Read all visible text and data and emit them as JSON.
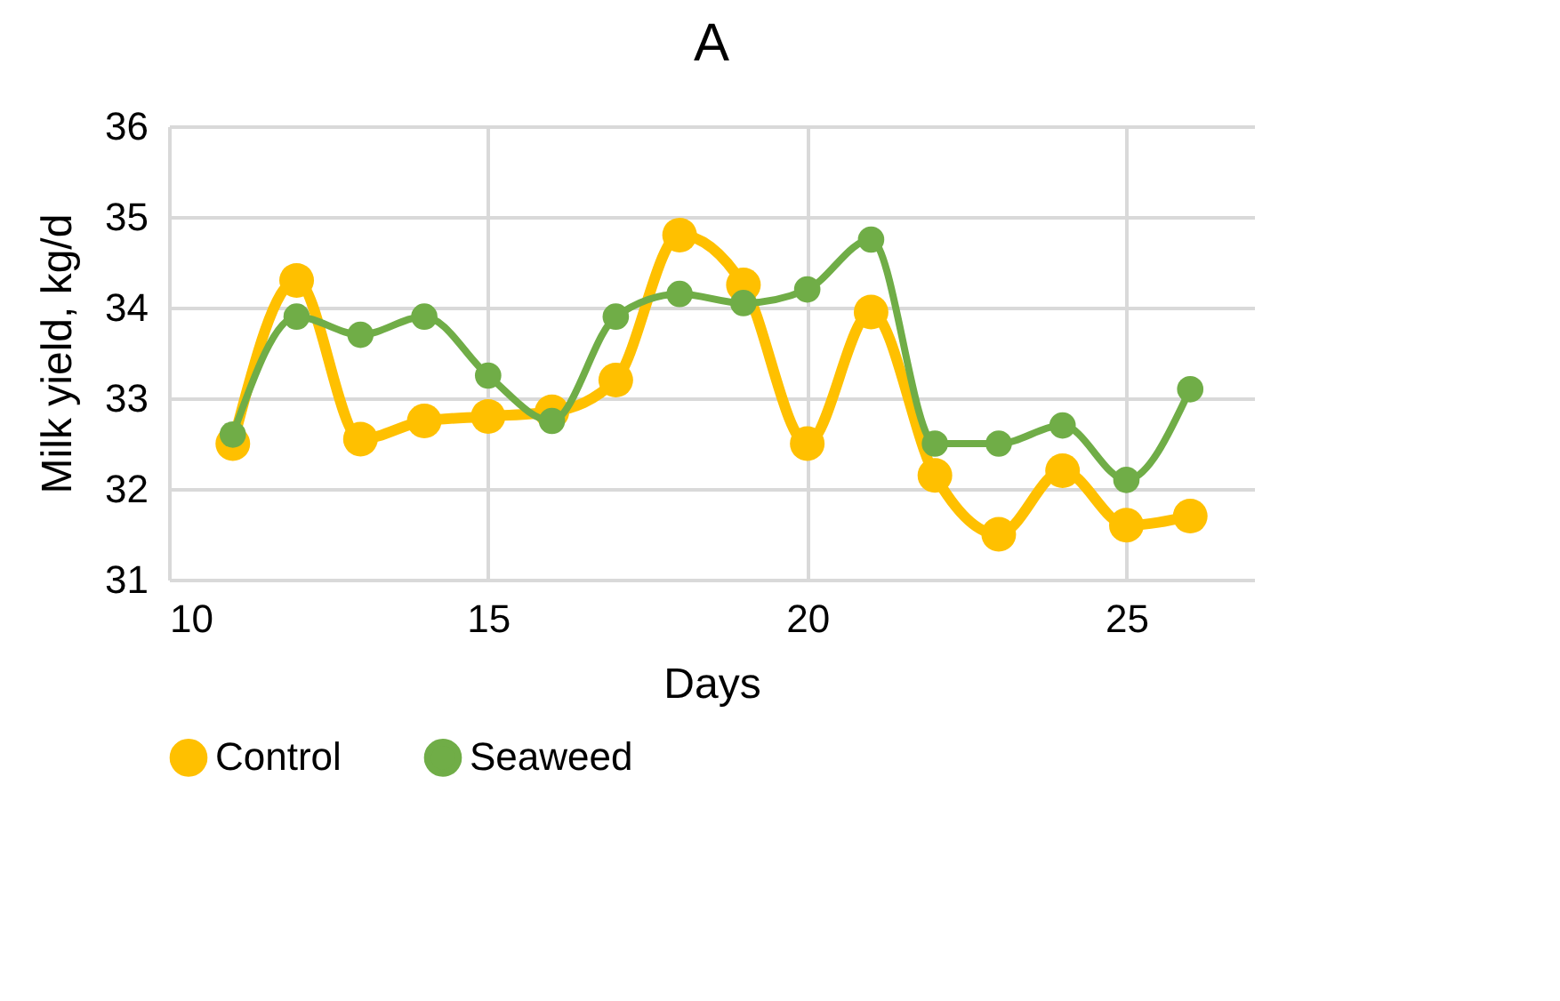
{
  "chart_data": {
    "type": "line",
    "title": "A",
    "xlabel": "Days",
    "ylabel": "Milk yield, kg/d",
    "x": [
      11,
      12,
      13,
      14,
      15,
      16,
      17,
      18,
      19,
      20,
      21,
      22,
      23,
      24,
      25,
      26
    ],
    "series": [
      {
        "name": "Control",
        "color": "#ffc000",
        "values": [
          32.5,
          34.3,
          32.55,
          32.75,
          32.8,
          32.85,
          33.2,
          34.8,
          34.25,
          32.5,
          33.95,
          32.15,
          31.5,
          32.2,
          31.6,
          31.7
        ]
      },
      {
        "name": "Seaweed",
        "color": "#70ad47",
        "values": [
          32.6,
          33.9,
          33.7,
          33.9,
          33.25,
          32.75,
          33.9,
          34.15,
          34.05,
          34.2,
          34.75,
          32.5,
          32.5,
          32.7,
          32.1,
          33.1
        ]
      }
    ],
    "xlim": [
      10,
      27
    ],
    "xticks": [
      10,
      15,
      20,
      25
    ],
    "ylim": [
      31,
      36
    ],
    "yticks": [
      31,
      32,
      33,
      34,
      35,
      36
    ],
    "grid": true,
    "legend": "bottom",
    "marker": "circle",
    "line_style": "solid"
  }
}
